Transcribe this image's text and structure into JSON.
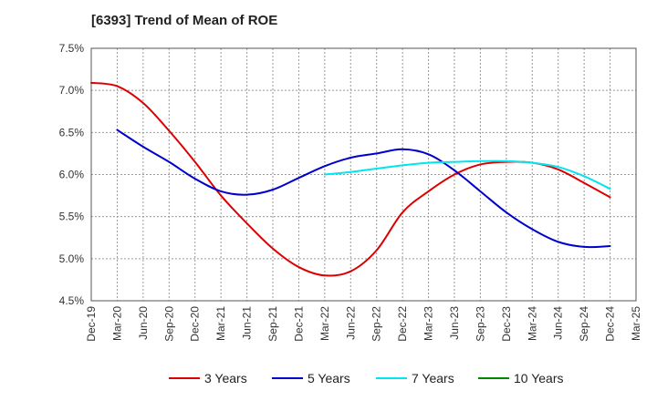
{
  "chart_data": {
    "type": "line",
    "title": "[6393]  Trend of Mean of ROE",
    "xlabel": "",
    "ylabel": "",
    "ylim": [
      4.5,
      7.5
    ],
    "y_ticks": [
      "4.5%",
      "5.0%",
      "5.5%",
      "6.0%",
      "6.5%",
      "7.0%",
      "7.5%"
    ],
    "y_tick_values": [
      4.5,
      5.0,
      5.5,
      6.0,
      6.5,
      7.0,
      7.5
    ],
    "categories": [
      "Dec-19",
      "Mar-20",
      "Jun-20",
      "Sep-20",
      "Dec-20",
      "Mar-21",
      "Jun-21",
      "Sep-21",
      "Dec-21",
      "Mar-22",
      "Jun-22",
      "Sep-22",
      "Dec-22",
      "Mar-23",
      "Jun-23",
      "Sep-23",
      "Dec-23",
      "Mar-24",
      "Jun-24",
      "Sep-24",
      "Dec-24",
      "Mar-25"
    ],
    "grid": true,
    "legend_position": "bottom",
    "series": [
      {
        "name": "3 Years",
        "color": "#dd0000",
        "values": [
          7.09,
          7.05,
          6.85,
          6.52,
          6.15,
          5.75,
          5.42,
          5.12,
          4.9,
          4.8,
          4.85,
          5.1,
          5.55,
          5.8,
          6.0,
          6.12,
          6.15,
          6.14,
          6.06,
          5.9,
          5.73,
          null
        ]
      },
      {
        "name": "5 Years",
        "color": "#0000cc",
        "values": [
          null,
          6.53,
          6.33,
          6.15,
          5.95,
          5.8,
          5.76,
          5.82,
          5.96,
          6.1,
          6.2,
          6.25,
          6.3,
          6.24,
          6.05,
          5.8,
          5.55,
          5.35,
          5.2,
          5.14,
          5.15,
          null
        ]
      },
      {
        "name": "7 Years",
        "color": "#00e5ee",
        "values": [
          null,
          null,
          null,
          null,
          null,
          null,
          null,
          null,
          null,
          6.0,
          6.03,
          6.07,
          6.11,
          6.14,
          6.15,
          6.16,
          6.16,
          6.14,
          6.09,
          5.98,
          5.83,
          null
        ]
      },
      {
        "name": "10 Years",
        "color": "#008800",
        "values": [
          null,
          null,
          null,
          null,
          null,
          null,
          null,
          null,
          null,
          null,
          null,
          null,
          null,
          null,
          null,
          null,
          null,
          null,
          null,
          null,
          null,
          null
        ]
      }
    ]
  }
}
